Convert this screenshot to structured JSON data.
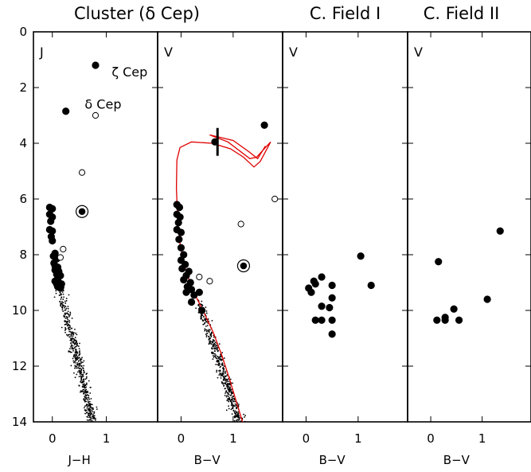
{
  "chart_data": {
    "type": "scatter",
    "ylim": [
      0,
      14
    ],
    "y_inverted": true,
    "y_ticks": [
      "0",
      "2",
      "4",
      "6",
      "8",
      "10",
      "12",
      "14"
    ],
    "panels": [
      {
        "title": "Cluster (δ Cep)",
        "tag": "J",
        "xlabel": "J−H",
        "xlim": [
          -0.35,
          1.95
        ],
        "x_ticks": [
          {
            "v": 0,
            "label": "0"
          },
          {
            "v": 1,
            "label": "1"
          }
        ],
        "members": [
          [
            -0.05,
            6.3
          ],
          [
            0.0,
            6.35
          ],
          [
            -0.05,
            6.55
          ],
          [
            0.0,
            6.65
          ],
          [
            -0.03,
            6.8
          ],
          [
            -0.05,
            7.1
          ],
          [
            0.0,
            7.15
          ],
          [
            -0.02,
            7.35
          ],
          [
            0.0,
            7.5
          ],
          [
            0.05,
            7.95
          ],
          [
            0.02,
            8.05
          ],
          [
            0.08,
            8.15
          ],
          [
            0.03,
            8.3
          ],
          [
            0.05,
            8.4
          ],
          [
            0.1,
            8.45
          ],
          [
            0.05,
            8.55
          ],
          [
            0.12,
            8.6
          ],
          [
            0.08,
            8.7
          ],
          [
            0.15,
            8.75
          ],
          [
            0.1,
            8.85
          ],
          [
            0.05,
            8.95
          ],
          [
            0.12,
            9.0
          ],
          [
            0.17,
            9.05
          ],
          [
            0.1,
            9.15
          ],
          [
            0.15,
            9.2
          ],
          [
            0.08,
            9.05
          ]
        ],
        "bright_stars": [
          [
            0.25,
            2.85
          ],
          [
            0.8,
            1.2
          ]
        ],
        "open_stars": [
          [
            0.8,
            3.0
          ],
          [
            0.55,
            5.05
          ],
          [
            0.2,
            7.8
          ],
          [
            0.15,
            8.1
          ]
        ],
        "circled_stars": [
          [
            0.55,
            6.45
          ]
        ],
        "annotations": [
          {
            "text": "ζ Cep",
            "x": 1.1,
            "y": 1.6
          },
          {
            "text": "δ Cep",
            "x": 0.6,
            "y": 2.75
          }
        ],
        "cmd_sequence_dots": {
          "from": [
            0.12,
            9.1
          ],
          "to": [
            0.75,
            14.0
          ],
          "count": 520,
          "scatter": 0.05
        }
      },
      {
        "title": "",
        "tag": "V",
        "xlabel": "B−V",
        "xlim": [
          -0.45,
          1.95
        ],
        "x_ticks": [
          {
            "v": 0,
            "label": "0"
          },
          {
            "v": 1,
            "label": "1"
          }
        ],
        "members": [
          [
            -0.08,
            6.2
          ],
          [
            -0.03,
            6.3
          ],
          [
            -0.08,
            6.55
          ],
          [
            -0.02,
            6.65
          ],
          [
            -0.05,
            6.85
          ],
          [
            -0.08,
            7.1
          ],
          [
            0.0,
            7.2
          ],
          [
            -0.04,
            7.45
          ],
          [
            0.0,
            7.75
          ],
          [
            0.05,
            8.0
          ],
          [
            0.0,
            8.2
          ],
          [
            0.08,
            8.35
          ],
          [
            0.02,
            8.5
          ],
          [
            0.15,
            8.6
          ],
          [
            0.1,
            8.75
          ],
          [
            0.05,
            8.9
          ],
          [
            0.18,
            9.0
          ],
          [
            0.12,
            9.15
          ],
          [
            0.2,
            9.25
          ],
          [
            0.1,
            9.35
          ],
          [
            0.25,
            9.45
          ],
          [
            0.2,
            9.7
          ],
          [
            0.4,
            10.0
          ],
          [
            0.35,
            9.35
          ]
        ],
        "bright_stars": [
          [
            0.65,
            3.95
          ],
          [
            1.6,
            3.35
          ]
        ],
        "open_stars": [
          [
            1.8,
            6.0
          ],
          [
            1.15,
            6.9
          ],
          [
            0.35,
            8.8
          ],
          [
            0.55,
            8.95
          ]
        ],
        "circled_stars": [
          [
            1.2,
            8.4
          ]
        ],
        "cepheid_bar": {
          "x": 0.7,
          "y_from": 3.45,
          "y_to": 4.45
        },
        "isochrone": [
          [
            1.18,
            14.0
          ],
          [
            1.05,
            13.2
          ],
          [
            0.92,
            12.4
          ],
          [
            0.78,
            11.6
          ],
          [
            0.62,
            10.8
          ],
          [
            0.42,
            10.0
          ],
          [
            0.22,
            9.25
          ],
          [
            0.08,
            8.5
          ],
          [
            -0.02,
            7.6
          ],
          [
            -0.07,
            6.6
          ],
          [
            -0.09,
            5.6
          ],
          [
            -0.08,
            4.6
          ],
          [
            -0.02,
            4.15
          ],
          [
            0.2,
            3.95
          ],
          [
            0.6,
            4.0
          ],
          [
            0.95,
            4.2
          ],
          [
            1.2,
            4.5
          ],
          [
            1.4,
            4.85
          ],
          [
            1.52,
            4.65
          ],
          [
            1.72,
            3.95
          ],
          [
            1.62,
            4.15
          ],
          [
            1.45,
            4.5
          ],
          [
            1.32,
            4.55
          ],
          [
            0.9,
            3.95
          ],
          [
            0.55,
            3.7
          ],
          [
            1.0,
            3.9
          ],
          [
            1.3,
            4.3
          ],
          [
            1.47,
            4.55
          ],
          [
            1.62,
            4.1
          ]
        ],
        "cmd_sequence_dots": {
          "from": [
            0.32,
            9.6
          ],
          "to": [
            1.12,
            14.0
          ],
          "count": 450,
          "scatter": 0.05
        }
      },
      {
        "title": "C. Field I",
        "tag": "V",
        "xlabel": "B−V",
        "xlim": [
          -0.45,
          1.95
        ],
        "x_ticks": [
          {
            "v": 0,
            "label": "0"
          },
          {
            "v": 1,
            "label": "1"
          }
        ],
        "members": [
          [
            0.05,
            9.2
          ],
          [
            0.1,
            9.35
          ],
          [
            0.18,
            9.05
          ],
          [
            0.15,
            8.95
          ],
          [
            0.3,
            8.8
          ],
          [
            0.5,
            9.1
          ],
          [
            0.3,
            9.85
          ],
          [
            0.45,
            9.9
          ],
          [
            0.5,
            9.55
          ],
          [
            0.18,
            10.35
          ],
          [
            0.3,
            10.35
          ],
          [
            0.5,
            10.35
          ],
          [
            0.5,
            10.85
          ],
          [
            1.05,
            8.05
          ],
          [
            1.25,
            9.1
          ]
        ]
      },
      {
        "title": "C. Field II",
        "tag": "V",
        "xlabel": "B−V",
        "xlim": [
          -0.45,
          1.95
        ],
        "x_ticks": [
          {
            "v": 0,
            "label": "0"
          },
          {
            "v": 1,
            "label": "1"
          }
        ],
        "members": [
          [
            0.15,
            8.25
          ],
          [
            0.12,
            10.35
          ],
          [
            0.28,
            10.25
          ],
          [
            0.28,
            10.35
          ],
          [
            0.45,
            9.95
          ],
          [
            0.55,
            10.35
          ],
          [
            1.1,
            9.6
          ],
          [
            1.35,
            7.15
          ]
        ]
      }
    ]
  }
}
